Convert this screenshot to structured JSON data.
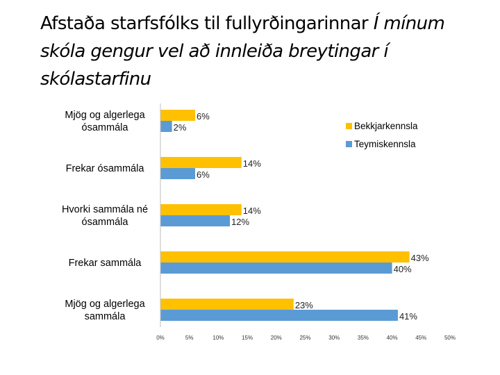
{
  "title": {
    "plain": "Afstaða starfsfólks til fullyrðingarinnar",
    "italic": "Í mínum skóla gengur vel að innleiða breytingar í skólastarfinu"
  },
  "chart_data": {
    "type": "bar",
    "orientation": "horizontal",
    "categories": [
      "Mjög og algerlega ósammála",
      "Frekar ósammála",
      "Hvorki sammála né ósammála",
      "Frekar sammála",
      "Mjög og algerlega sammála"
    ],
    "series": [
      {
        "name": "Bekkjarkennsla",
        "color": "#FFC000",
        "values": [
          6,
          14,
          14,
          43,
          23
        ],
        "labels": [
          "6%",
          "14%",
          "14%",
          "43%",
          "23%"
        ]
      },
      {
        "name": "Teymiskennsla",
        "color": "#5B9BD5",
        "values": [
          2,
          6,
          12,
          40,
          41
        ],
        "labels": [
          "2%",
          "6%",
          "12%",
          "40%",
          "41%"
        ]
      }
    ],
    "xlim": [
      0,
      50
    ],
    "xticks": [
      "0%",
      "5%",
      "10%",
      "15%",
      "20%",
      "25%",
      "30%",
      "35%",
      "40%",
      "45%",
      "50%"
    ],
    "unit": "%",
    "legend_position": "top-right",
    "grid": false
  }
}
